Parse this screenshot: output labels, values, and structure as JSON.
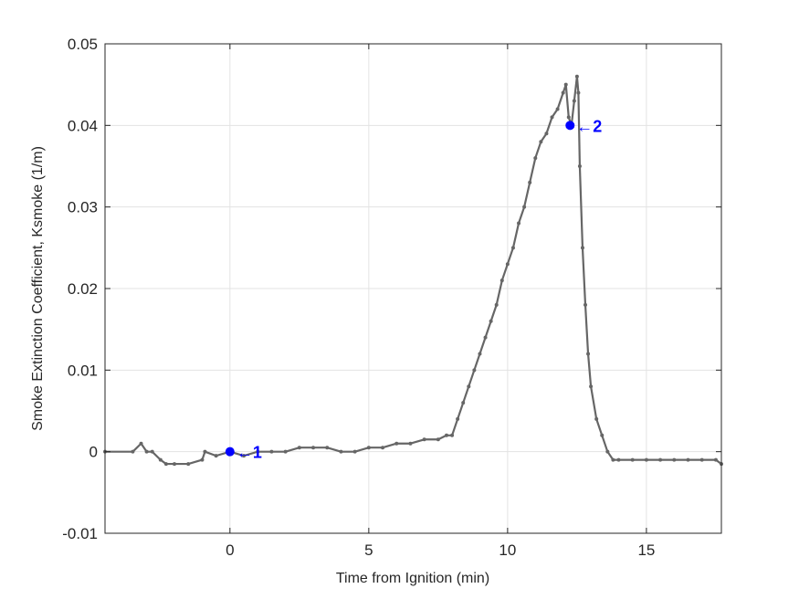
{
  "chart_data": {
    "type": "line",
    "title": "",
    "xlabel": "Time from Ignition (min)",
    "ylabel": "Smoke Extinction Coefficient, Ksmoke (1/m)",
    "xlim": [
      -4.5,
      17.7
    ],
    "ylim": [
      -0.01,
      0.05
    ],
    "xticks": [
      0,
      5,
      10,
      15
    ],
    "xtick_labels": [
      "0",
      "5",
      "10",
      "15"
    ],
    "yticks": [
      -0.01,
      0,
      0.01,
      0.02,
      0.03,
      0.04,
      0.05
    ],
    "ytick_labels": [
      "-0.01",
      "0",
      "0.01",
      "0.02",
      "0.03",
      "0.04",
      "0.05"
    ],
    "grid": true,
    "series": [
      {
        "color": "#666666",
        "marker": "dot",
        "x": [
          -4.5,
          -3.5,
          -3.2,
          -3.0,
          -2.8,
          -2.5,
          -2.3,
          -2.0,
          -1.5,
          -1.0,
          -0.9,
          -0.5,
          0.0,
          0.5,
          1.0,
          1.5,
          2.0,
          2.5,
          3.0,
          3.5,
          4.0,
          4.5,
          5.0,
          5.5,
          6.0,
          6.5,
          7.0,
          7.5,
          7.8,
          8.0,
          8.2,
          8.4,
          8.6,
          8.8,
          9.0,
          9.2,
          9.4,
          9.6,
          9.8,
          10.0,
          10.2,
          10.4,
          10.6,
          10.8,
          11.0,
          11.2,
          11.4,
          11.6,
          11.8,
          12.0,
          12.1,
          12.2,
          12.3,
          12.4,
          12.5,
          12.55,
          12.6,
          12.7,
          12.8,
          12.9,
          13.0,
          13.2,
          13.4,
          13.6,
          13.8,
          14.0,
          14.5,
          15.0,
          15.5,
          16.0,
          16.5,
          17.0,
          17.5,
          17.7
        ],
        "y": [
          0.0,
          0.0,
          0.001,
          0.0,
          0.0,
          -0.001,
          -0.0015,
          -0.0015,
          -0.0015,
          -0.001,
          0.0,
          -0.0005,
          0.0,
          -0.0005,
          0.0,
          0.0,
          0.0,
          0.0005,
          0.0005,
          0.0005,
          0.0,
          0.0,
          0.0005,
          0.0005,
          0.001,
          0.001,
          0.0015,
          0.0015,
          0.002,
          0.002,
          0.004,
          0.006,
          0.008,
          0.01,
          0.012,
          0.014,
          0.016,
          0.018,
          0.021,
          0.023,
          0.025,
          0.028,
          0.03,
          0.033,
          0.036,
          0.038,
          0.039,
          0.041,
          0.042,
          0.044,
          0.045,
          0.041,
          0.04,
          0.043,
          0.046,
          0.044,
          0.035,
          0.025,
          0.018,
          0.012,
          0.008,
          0.004,
          0.002,
          0.0,
          -0.001,
          -0.001,
          -0.001,
          -0.001,
          -0.001,
          -0.001,
          -0.001,
          -0.001,
          -0.001,
          -0.0015
        ]
      }
    ],
    "annotations": [
      {
        "label": "←1",
        "x": 0.0,
        "y": 0.0,
        "color": "#0000ff"
      },
      {
        "label": "←2",
        "x": 12.25,
        "y": 0.04,
        "color": "#0000ff"
      }
    ]
  }
}
